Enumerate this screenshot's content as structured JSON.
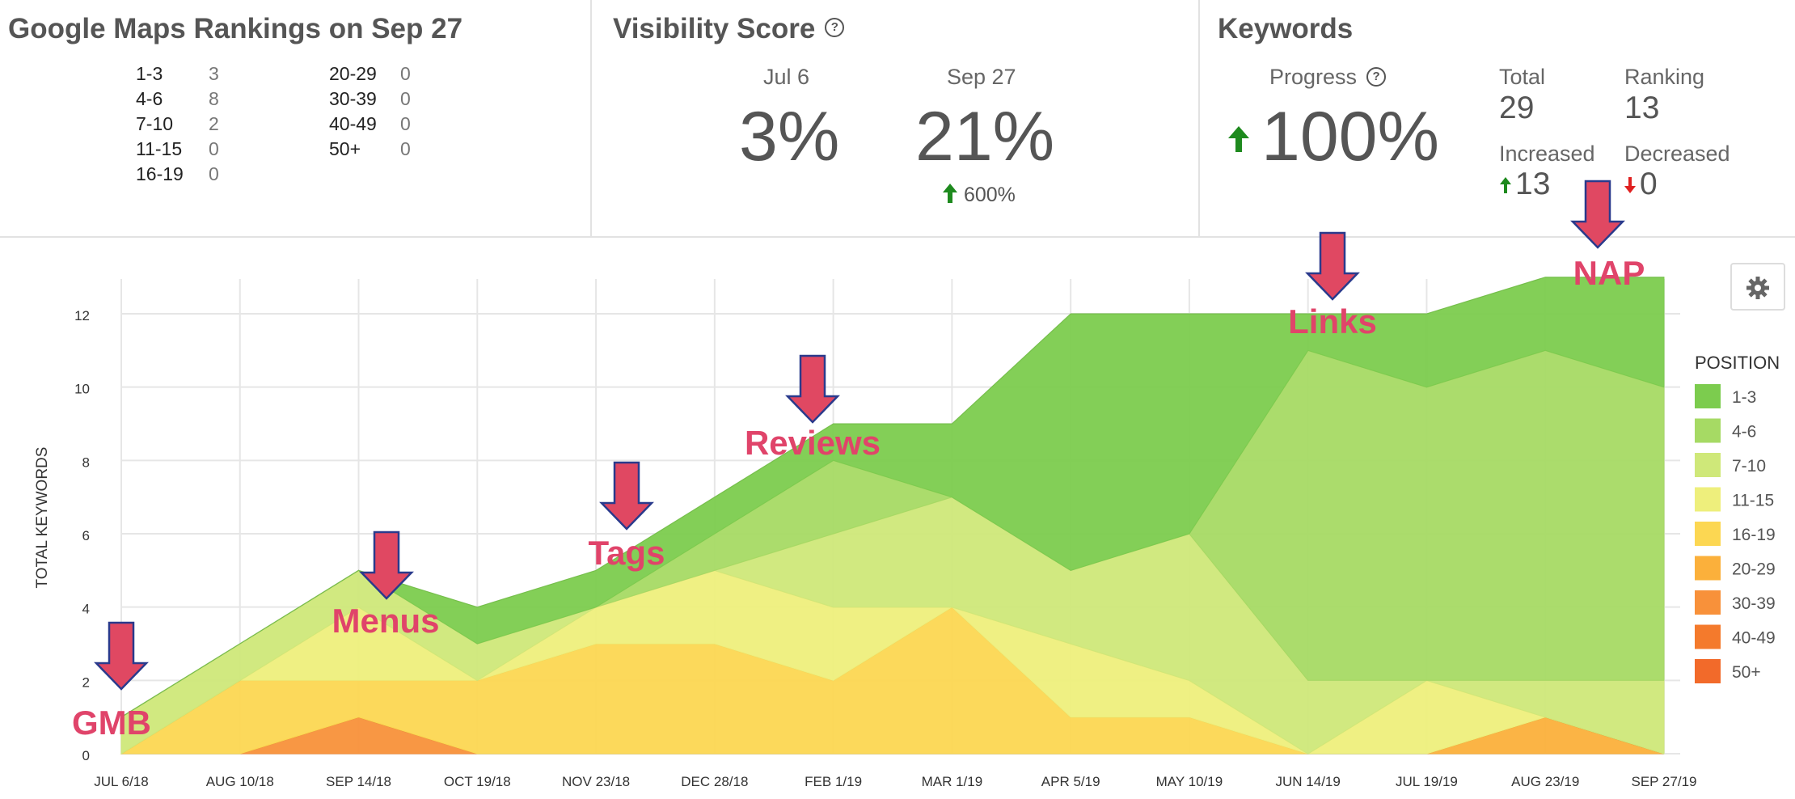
{
  "rankings": {
    "title": "Google Maps Rankings on Sep 27",
    "rows_left": [
      {
        "range": "1-3",
        "count": "3"
      },
      {
        "range": "4-6",
        "count": "8"
      },
      {
        "range": "7-10",
        "count": "2"
      },
      {
        "range": "11-15",
        "count": "0"
      },
      {
        "range": "16-19",
        "count": "0"
      }
    ],
    "rows_right": [
      {
        "range": "20-29",
        "count": "0"
      },
      {
        "range": "30-39",
        "count": "0"
      },
      {
        "range": "40-49",
        "count": "0"
      },
      {
        "range": "50+",
        "count": "0"
      }
    ]
  },
  "visibility": {
    "title": "Visibility Score",
    "help_icon": "?",
    "from_label": "Jul 6",
    "from_value": "3%",
    "to_label": "Sep 27",
    "to_value": "21%",
    "change": "600%"
  },
  "keywords": {
    "title": "Keywords",
    "progress_label": "Progress",
    "help_icon": "?",
    "progress_value": "100%",
    "total_label": "Total",
    "total_value": "29",
    "ranking_label": "Ranking",
    "ranking_value": "13",
    "increased_label": "Increased",
    "increased_value": "13",
    "decreased_label": "Decreased",
    "decreased_value": "0"
  },
  "settings_icon": "gear-icon",
  "chart_data": {
    "type": "area",
    "stacked": true,
    "ylabel": "TOTAL KEYWORDS",
    "ylim": [
      0,
      13
    ],
    "yticks": [
      0,
      2,
      4,
      6,
      8,
      10,
      12
    ],
    "categories": [
      "JUL 6/18",
      "AUG 10/18",
      "SEP 14/18",
      "OCT 19/18",
      "NOV 23/18",
      "DEC 28/18",
      "FEB 1/19",
      "MAR 1/19",
      "APR 5/19",
      "MAY 10/19",
      "JUN 14/19",
      "JUL 19/19",
      "AUG 23/19",
      "SEP 27/19"
    ],
    "legend_title": "POSITION",
    "legend_position": "right",
    "series": [
      {
        "name": "50+",
        "color": "#f26a2a",
        "values": [
          0,
          0,
          0,
          0,
          0,
          0,
          0,
          0,
          0,
          0,
          0,
          0,
          0,
          0
        ]
      },
      {
        "name": "40-49",
        "color": "#f47a2c",
        "values": [
          0,
          0,
          0,
          0,
          0,
          0,
          0,
          0,
          0,
          0,
          0,
          0,
          0,
          0
        ]
      },
      {
        "name": "30-39",
        "color": "#f8913a",
        "values": [
          0,
          0,
          1,
          0,
          0,
          0,
          0,
          0,
          0,
          0,
          0,
          0,
          0,
          0
        ]
      },
      {
        "name": "20-29",
        "color": "#fbb03b",
        "values": [
          0,
          0,
          0,
          0,
          0,
          0,
          0,
          0,
          0,
          0,
          0,
          0,
          1,
          0
        ]
      },
      {
        "name": "16-19",
        "color": "#fcd752",
        "values": [
          0,
          2,
          1,
          2,
          3,
          3,
          2,
          4,
          1,
          1,
          0,
          0,
          0,
          0
        ]
      },
      {
        "name": "11-15",
        "color": "#eeef7c",
        "values": [
          0,
          0,
          2,
          0,
          1,
          2,
          2,
          0,
          2,
          1,
          0,
          2,
          0,
          0
        ]
      },
      {
        "name": "7-10",
        "color": "#cfe879",
        "values": [
          1,
          1,
          1,
          1,
          0,
          0,
          2,
          3,
          2,
          4,
          2,
          0,
          1,
          2
        ]
      },
      {
        "name": "4-6",
        "color": "#a6da64",
        "values": [
          0,
          0,
          0,
          0,
          0,
          1,
          2,
          0,
          0,
          0,
          9,
          8,
          9,
          8
        ]
      },
      {
        "name": "1-3",
        "color": "#7ccc4e",
        "values": [
          0,
          0,
          0,
          1,
          1,
          1,
          1,
          2,
          7,
          6,
          1,
          2,
          2,
          3
        ]
      }
    ],
    "annotations": [
      {
        "label": "GMB",
        "category": "JUL 6/18"
      },
      {
        "label": "Menus",
        "category": "SEP 14/18"
      },
      {
        "label": "Tags",
        "category": "NOV 23/18"
      },
      {
        "label": "Reviews",
        "category": "FEB 1/19"
      },
      {
        "label": "Links",
        "category": "JUN 14/19"
      },
      {
        "label": "NAP",
        "category": "AUG 23/19"
      }
    ]
  }
}
